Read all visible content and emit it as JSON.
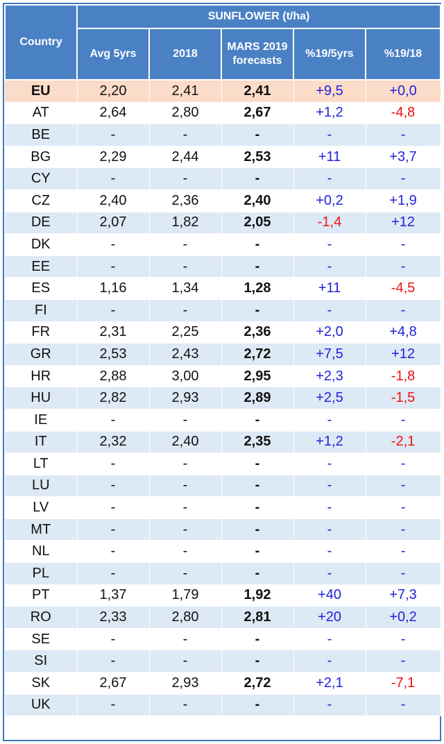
{
  "header": {
    "country": "Country",
    "group": "SUNFLOWER (t/ha)",
    "columns": [
      "Avg 5yrs",
      "2018",
      "MARS 2019 forecasts",
      "%19/5yrs",
      "%19/18"
    ]
  },
  "colors": {
    "header_bg": "#4a81c4",
    "eu_row": "#fbdcc8",
    "alt_row": "#dde9f5",
    "positive": "#2222dd",
    "negative": "#ee1111"
  },
  "rows": [
    [
      "EU",
      "2,20",
      "2,41",
      "2,41",
      "+9,5",
      "+0,0"
    ],
    [
      "AT",
      "2,64",
      "2,80",
      "2,67",
      "+1,2",
      "-4,8"
    ],
    [
      "BE",
      "-",
      "-",
      "-",
      "-",
      "-"
    ],
    [
      "BG",
      "2,29",
      "2,44",
      "2,53",
      "+11",
      "+3,7"
    ],
    [
      "CY",
      "-",
      "-",
      "-",
      "-",
      "-"
    ],
    [
      "CZ",
      "2,40",
      "2,36",
      "2,40",
      "+0,2",
      "+1,9"
    ],
    [
      "DE",
      "2,07",
      "1,82",
      "2,05",
      "-1,4",
      "+12"
    ],
    [
      "DK",
      "-",
      "-",
      "-",
      "-",
      "-"
    ],
    [
      "EE",
      "-",
      "-",
      "-",
      "-",
      "-"
    ],
    [
      "ES",
      "1,16",
      "1,34",
      "1,28",
      "+11",
      "-4,5"
    ],
    [
      "FI",
      "-",
      "-",
      "-",
      "-",
      "-"
    ],
    [
      "FR",
      "2,31",
      "2,25",
      "2,36",
      "+2,0",
      "+4,8"
    ],
    [
      "GR",
      "2,53",
      "2,43",
      "2,72",
      "+7,5",
      "+12"
    ],
    [
      "HR",
      "2,88",
      "3,00",
      "2,95",
      "+2,3",
      "-1,8"
    ],
    [
      "HU",
      "2,82",
      "2,93",
      "2,89",
      "+2,5",
      "-1,5"
    ],
    [
      "IE",
      "-",
      "-",
      "-",
      "-",
      "-"
    ],
    [
      "IT",
      "2,32",
      "2,40",
      "2,35",
      "+1,2",
      "-2,1"
    ],
    [
      "LT",
      "-",
      "-",
      "-",
      "-",
      "-"
    ],
    [
      "LU",
      "-",
      "-",
      "-",
      "-",
      "-"
    ],
    [
      "LV",
      "-",
      "-",
      "-",
      "-",
      "-"
    ],
    [
      "MT",
      "-",
      "-",
      "-",
      "-",
      "-"
    ],
    [
      "NL",
      "-",
      "-",
      "-",
      "-",
      "-"
    ],
    [
      "PL",
      "-",
      "-",
      "-",
      "-",
      "-"
    ],
    [
      "PT",
      "1,37",
      "1,79",
      "1,92",
      "+40",
      "+7,3"
    ],
    [
      "RO",
      "2,33",
      "2,80",
      "2,81",
      "+20",
      "+0,2"
    ],
    [
      "SE",
      "-",
      "-",
      "-",
      "-",
      "-"
    ],
    [
      "SI",
      "-",
      "-",
      "-",
      "-",
      "-"
    ],
    [
      "SK",
      "2,67",
      "2,93",
      "2,72",
      "+2,1",
      "-7,1"
    ],
    [
      "UK",
      "-",
      "-",
      "-",
      "-",
      "-"
    ]
  ]
}
